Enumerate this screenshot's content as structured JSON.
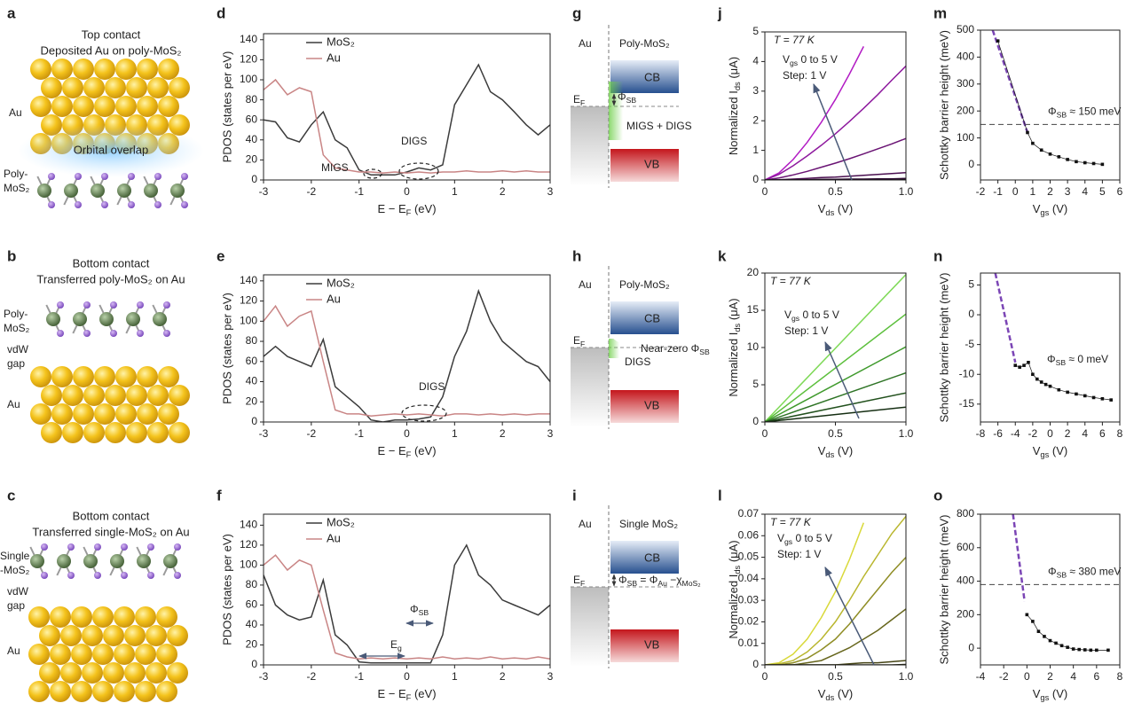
{
  "diagrams": {
    "a": {
      "panel": "a",
      "title": [
        "Top contact",
        "Deposited Au on poly-MoS₂"
      ],
      "metal": "Au",
      "overlap": "Orbital overlap",
      "layer": [
        "Poly-",
        "MoS₂"
      ]
    },
    "b": {
      "panel": "b",
      "title": [
        "Bottom contact",
        "Transferred poly-MoS₂ on Au"
      ],
      "layer": [
        "Poly-",
        "MoS₂"
      ],
      "gap": [
        "vdW",
        "gap"
      ],
      "metal": "Au"
    },
    "c": {
      "panel": "c",
      "title": [
        "Bottom contact",
        "Transferred single-MoS₂ on Au"
      ],
      "layer": [
        "Single",
        "-MoS₂"
      ],
      "gap": [
        "vdW",
        "gap"
      ],
      "metal": "Au"
    },
    "g": {
      "panel": "g",
      "metal": "Au",
      "semiconductor": "Poly-MoS₂",
      "cb": "CB",
      "vb": "VB",
      "fermi": [
        "E",
        "F"
      ],
      "barrier": [
        "Φ",
        "SB"
      ],
      "states": "MIGS + DIGS"
    },
    "h": {
      "panel": "h",
      "metal": "Au",
      "semiconductor": "Poly-MoS₂",
      "cb": "CB",
      "vb": "VB",
      "fermi": [
        "E",
        "F"
      ],
      "barrier": [
        "Near-zero Φ",
        "SB"
      ],
      "states": "DIGS"
    },
    "i": {
      "panel": "i",
      "metal": "Au",
      "semiconductor": "Single MoS₂",
      "cb": "CB",
      "vb": "VB",
      "fermi": [
        "E",
        "F"
      ],
      "barrier": [
        "Φ",
        "SB",
        " = Φ",
        "Au",
        " −χ",
        "MoS₂"
      ]
    }
  },
  "chart_data": [
    {
      "type": "line",
      "panel": "d",
      "xlabel": [
        "E − E",
        "F",
        " (eV)"
      ],
      "ylabel": "PDOS (states per eV)",
      "legend": "upper left",
      "x": [
        -3,
        -2.75,
        -2.5,
        -2.25,
        -2,
        -1.75,
        -1.5,
        -1.25,
        -1,
        -0.75,
        -0.5,
        -0.25,
        0,
        0.25,
        0.5,
        0.75,
        1,
        1.25,
        1.5,
        1.75,
        2,
        2.25,
        2.5,
        2.75,
        3
      ],
      "series": [
        {
          "name": "MoS₂",
          "color": "#3c3c3c",
          "values": [
            60,
            58,
            42,
            38,
            55,
            68,
            40,
            32,
            10,
            5,
            5,
            5,
            8,
            12,
            10,
            15,
            75,
            95,
            115,
            88,
            80,
            68,
            55,
            45,
            55
          ]
        },
        {
          "name": "Au",
          "color": "#c98585",
          "values": [
            90,
            100,
            85,
            92,
            88,
            25,
            12,
            10,
            8,
            8,
            7,
            8,
            7,
            8,
            7,
            8,
            8,
            9,
            8,
            8,
            9,
            8,
            9,
            8,
            8
          ]
        }
      ],
      "xlim": [
        -3,
        3
      ],
      "xticks": [
        -3,
        -2,
        -1,
        0,
        1,
        2,
        3
      ],
      "ylim": [
        0,
        146
      ],
      "yticks": [
        0,
        20,
        40,
        60,
        80,
        100,
        120,
        140
      ],
      "annotations": [
        "MIGS",
        "DIGS"
      ]
    },
    {
      "type": "line",
      "panel": "e",
      "xlabel": [
        "E − E",
        "F",
        " (eV)"
      ],
      "ylabel": "PDOS (states per eV)",
      "legend": "upper left",
      "x": [
        -3,
        -2.75,
        -2.5,
        -2.25,
        -2,
        -1.75,
        -1.5,
        -1.25,
        -1,
        -0.75,
        -0.5,
        -0.25,
        0,
        0.25,
        0.5,
        0.75,
        1,
        1.25,
        1.5,
        1.75,
        2,
        2.25,
        2.5,
        2.75,
        3
      ],
      "series": [
        {
          "name": "MoS₂",
          "color": "#3c3c3c",
          "values": [
            65,
            75,
            65,
            60,
            55,
            82,
            35,
            25,
            15,
            2,
            0,
            2,
            2,
            3,
            5,
            25,
            65,
            90,
            130,
            100,
            80,
            70,
            60,
            55,
            40
          ]
        },
        {
          "name": "Au",
          "color": "#c98585",
          "values": [
            100,
            115,
            95,
            105,
            110,
            60,
            12,
            8,
            8,
            6,
            7,
            8,
            7,
            8,
            7,
            6,
            8,
            8,
            7,
            8,
            7,
            8,
            7,
            8,
            8
          ]
        }
      ],
      "xlim": [
        -3,
        3
      ],
      "xticks": [
        -3,
        -2,
        -1,
        0,
        1,
        2,
        3
      ],
      "ylim": [
        0,
        146
      ],
      "yticks": [
        0,
        20,
        40,
        60,
        80,
        100,
        120,
        140
      ],
      "annotations": [
        "DIGS"
      ]
    },
    {
      "type": "line",
      "panel": "f",
      "xlabel": [
        "E − E",
        "F",
        " (eV)"
      ],
      "ylabel": "PDOS (states per eV)",
      "legend": "upper left",
      "x": [
        -3,
        -2.75,
        -2.5,
        -2.25,
        -2,
        -1.75,
        -1.5,
        -1.25,
        -1,
        -0.75,
        -0.5,
        -0.25,
        0,
        0.25,
        0.5,
        0.75,
        1,
        1.25,
        1.5,
        1.75,
        2,
        2.25,
        2.5,
        2.75,
        3
      ],
      "series": [
        {
          "name": "MoS₂",
          "color": "#3c3c3c",
          "values": [
            90,
            60,
            50,
            45,
            48,
            85,
            30,
            20,
            3,
            2,
            2,
            2,
            2,
            2,
            2,
            30,
            100,
            120,
            90,
            80,
            65,
            60,
            55,
            50,
            60
          ]
        },
        {
          "name": "Au",
          "color": "#c98585",
          "values": [
            100,
            110,
            95,
            105,
            100,
            55,
            12,
            8,
            6,
            7,
            6,
            7,
            6,
            7,
            6,
            8,
            6,
            7,
            6,
            8,
            6,
            7,
            6,
            8,
            6
          ]
        }
      ],
      "xlim": [
        -3,
        3
      ],
      "xticks": [
        -3,
        -2,
        -1,
        0,
        1,
        2,
        3
      ],
      "ylim": [
        0,
        151
      ],
      "yticks": [
        0,
        20,
        40,
        60,
        80,
        100,
        120,
        140
      ],
      "annotations": [
        [
          "E",
          "g"
        ],
        [
          "Φ",
          "SB"
        ]
      ]
    },
    {
      "type": "line",
      "panel": "j",
      "xlabel": [
        "V",
        "ds",
        " (V)"
      ],
      "ylabel": [
        "Normalized I",
        "ds",
        " (μA)"
      ],
      "x": [
        0,
        0.1,
        0.2,
        0.3,
        0.4,
        0.5,
        0.6,
        0.7,
        0.8,
        0.9,
        1
      ],
      "series": [
        {
          "color": "#b21cc4",
          "values": [
            0,
            0.24,
            0.69,
            1.27,
            1.95,
            2.72,
            3.58,
            4.51,
            null,
            null,
            null
          ]
        },
        {
          "color": "#8e1a9e",
          "values": [
            0,
            0.19,
            0.48,
            0.81,
            1.17,
            1.56,
            1.98,
            2.42,
            2.88,
            3.37,
            3.85
          ]
        },
        {
          "color": "#6a1474",
          "values": [
            0,
            0.07,
            0.17,
            0.29,
            0.43,
            0.57,
            0.72,
            0.88,
            1.05,
            1.22,
            1.4
          ]
        },
        {
          "color": "#4a0f50",
          "values": [
            0,
            0.01,
            0.03,
            0.05,
            0.08,
            0.1,
            0.13,
            0.16,
            0.19,
            0.22,
            0.25
          ]
        },
        {
          "color": "#2c0a30",
          "values": [
            0,
            0,
            0.01,
            0.01,
            0.02,
            0.02,
            0.03,
            0.03,
            0.04,
            0.04,
            0.05
          ]
        },
        {
          "color": "#120512",
          "values": [
            0,
            0,
            0,
            0,
            0,
            0,
            0,
            0,
            0,
            0,
            0.01
          ]
        }
      ],
      "xlim": [
        0,
        1
      ],
      "xticks": [
        0,
        0.5,
        {
          "value": 1,
          "label": "1.0"
        }
      ],
      "ylim": [
        0,
        5
      ],
      "yticks": [
        0,
        1,
        2,
        3,
        4,
        5
      ],
      "annotations": [
        "T = 77 K",
        [
          "V",
          "gs",
          " 0 to 5 V"
        ],
        "Step: 1 V"
      ]
    },
    {
      "type": "line",
      "panel": "k",
      "xlabel": [
        "V",
        "ds",
        " (V)"
      ],
      "ylabel": [
        "Normalized I",
        "ds",
        " (μA)"
      ],
      "x": [
        0,
        1
      ],
      "series": [
        {
          "color": "#7ed957",
          "values": [
            0,
            19.8
          ]
        },
        {
          "color": "#5cbf3c",
          "values": [
            0,
            14.5
          ]
        },
        {
          "color": "#3f9a2c",
          "values": [
            0,
            10.1
          ]
        },
        {
          "color": "#2f7426",
          "values": [
            0,
            6.6
          ]
        },
        {
          "color": "#22511d",
          "values": [
            0,
            3.9
          ]
        },
        {
          "color": "#152e12",
          "values": [
            0,
            2
          ]
        }
      ],
      "xlim": [
        0,
        1
      ],
      "xticks": [
        0,
        0.5,
        {
          "value": 1,
          "label": "1.0"
        }
      ],
      "ylim": [
        0,
        20
      ],
      "yticks": [
        0,
        5,
        10,
        15,
        20
      ],
      "annotations": [
        "T = 77 K",
        [
          "V",
          "gs",
          " 0 to 5 V"
        ],
        "Step: 1 V"
      ]
    },
    {
      "type": "line",
      "panel": "l",
      "xlabel": [
        "V",
        "ds",
        " (V)"
      ],
      "ylabel": [
        "Normalized I",
        "ds",
        " (μA)"
      ],
      "x": [
        0,
        0.1,
        0.2,
        0.3,
        0.4,
        0.5,
        0.6,
        0.7,
        0.8,
        0.9,
        1
      ],
      "series": [
        {
          "color": "#d9d93a",
          "values": [
            0,
            0.001,
            0.005,
            0.012,
            0.022,
            0.034,
            0.049,
            0.066,
            null,
            null,
            null
          ]
        },
        {
          "color": "#b9b62e",
          "values": [
            0,
            0.0005,
            0.002,
            0.006,
            0.012,
            0.02,
            0.03,
            0.041,
            0.051,
            0.061,
            0.069
          ]
        },
        {
          "color": "#8f8d25",
          "values": [
            0,
            0,
            0.001,
            0.003,
            0.007,
            0.012,
            0.019,
            0.027,
            0.035,
            0.043,
            0.05
          ]
        },
        {
          "color": "#67661d",
          "values": [
            0,
            0,
            0,
            0.001,
            0.002,
            0.005,
            0.008,
            0.012,
            0.016,
            0.021,
            0.026
          ]
        },
        {
          "color": "#454415",
          "values": [
            0,
            0,
            0,
            0,
            0,
            0,
            0.0005,
            0.001,
            0.001,
            0.0015,
            0.002
          ]
        },
        {
          "color": "#24240c",
          "values": [
            0,
            0,
            0,
            0,
            0,
            0,
            0,
            0,
            0,
            0,
            0.0002
          ]
        }
      ],
      "xlim": [
        0,
        1
      ],
      "xticks": [
        0,
        0.5,
        {
          "value": 1,
          "label": "1.0"
        }
      ],
      "ylim": [
        0,
        0.07
      ],
      "yticks": [
        0,
        0.01,
        0.02,
        0.03,
        0.04,
        0.05,
        0.06,
        0.07
      ],
      "annotations": [
        "T = 77 K",
        [
          "V",
          "gs",
          " 0 to 5 V"
        ],
        "Step: 1 V"
      ]
    },
    {
      "type": "scatter",
      "panel": "m",
      "xlabel": [
        "V",
        "gs",
        " (V)"
      ],
      "ylabel": "Schottky barrier height (meV)",
      "color": "#111111",
      "connected": true,
      "x": [
        -1,
        0.7,
        1,
        1.5,
        2,
        2.5,
        3,
        3.5,
        4,
        4.5,
        5
      ],
      "values": [
        460,
        120,
        80,
        55,
        40,
        30,
        20,
        12,
        8,
        5,
        2
      ],
      "fit": {
        "color": "#7b45b5",
        "x": [
          -1.3,
          0.7
        ],
        "y": [
          500,
          120
        ]
      },
      "hline": {
        "value": 150,
        "label": [
          "Φ",
          "SB",
          " ≈ 150 meV"
        ]
      },
      "xlim": [
        -2,
        6
      ],
      "xticks": [
        -2,
        -1,
        0,
        1,
        2,
        3,
        4,
        5,
        6
      ],
      "ylim": [
        -56,
        500
      ],
      "yticks": [
        0,
        100,
        200,
        300,
        400,
        500
      ]
    },
    {
      "type": "scatter",
      "panel": "n",
      "xlabel": [
        "V",
        "gs",
        " (V)"
      ],
      "ylabel": "Schottky barrier height (meV)",
      "color": "#111111",
      "connected": true,
      "x": [
        -4,
        -3.5,
        -3,
        -2.5,
        -2,
        -1.5,
        -1,
        -0.5,
        0,
        1,
        2,
        3,
        4,
        5,
        6,
        7
      ],
      "values": [
        -8.5,
        -8.8,
        -8.5,
        -8,
        -10,
        -10.8,
        -11.3,
        -11.7,
        -12,
        -12.6,
        -13,
        -13.3,
        -13.6,
        -13.9,
        -14.1,
        -14.3
      ],
      "fit": {
        "color": "#7b45b5",
        "x": [
          -6.3,
          -4
        ],
        "y": [
          7,
          -8
        ]
      },
      "annotations": [
        [
          "Φ",
          "SB",
          " ≈ 0 meV"
        ]
      ],
      "xlim": [
        -8,
        8
      ],
      "xticks": [
        -8,
        -6,
        -4,
        -2,
        0,
        2,
        4,
        6,
        8
      ],
      "ylim": [
        -18,
        7
      ],
      "yticks": [
        -15,
        -10,
        -5,
        0,
        5
      ]
    },
    {
      "type": "scatter",
      "panel": "o",
      "xlabel": [
        "V",
        "gs",
        " (V)"
      ],
      "ylabel": "Schottky barrier height (meV)",
      "color": "#111111",
      "connected": true,
      "x": [
        0,
        0.5,
        1,
        1.5,
        2,
        2.5,
        3,
        3.5,
        4,
        4.5,
        5,
        5.5,
        6,
        7
      ],
      "values": [
        200,
        160,
        100,
        70,
        45,
        30,
        15,
        5,
        -5,
        -8,
        -10,
        -12,
        -12,
        -12
      ],
      "fit": {
        "color": "#7b45b5",
        "x": [
          -1.2,
          -0.2
        ],
        "y": [
          800,
          280
        ]
      },
      "hline": {
        "value": 380,
        "label": [
          "Φ",
          "SB",
          " ≈ 380 meV"
        ]
      },
      "xlim": [
        -4,
        8
      ],
      "xticks": [
        -4,
        -2,
        0,
        2,
        4,
        6,
        8
      ],
      "ylim": [
        -100,
        800
      ],
      "yticks": [
        0,
        200,
        400,
        600,
        800
      ]
    }
  ]
}
